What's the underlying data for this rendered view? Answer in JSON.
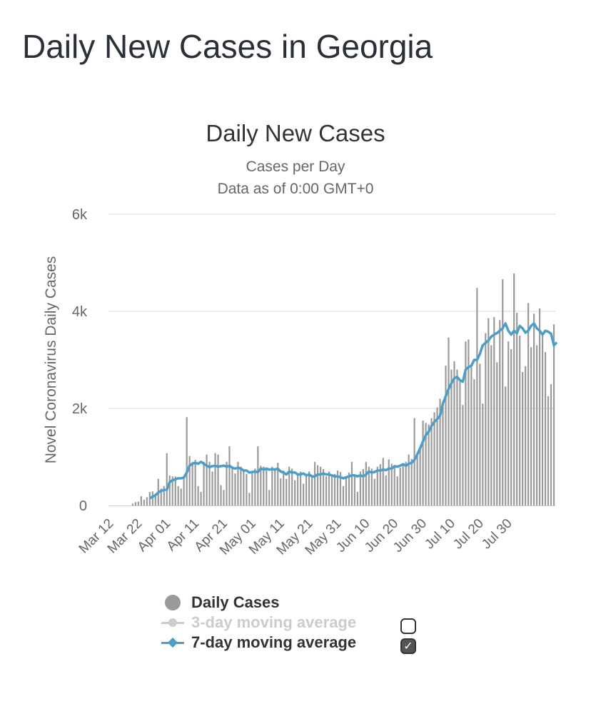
{
  "page": {
    "title": "Daily New Cases in Georgia"
  },
  "chart_title": "Daily New Cases",
  "chart_subtitle_1": "Cases per Day",
  "chart_subtitle_2": "Data as of 0:00 GMT+0",
  "colors": {
    "bars": "#9a9a9a",
    "ma7": "#4d9dc9",
    "ma3_disabled": "#cccccc",
    "grid": "#e6e6e6"
  },
  "legend": {
    "daily": {
      "label": "Daily Cases",
      "enabled": true
    },
    "ma3": {
      "label": "3-day moving average",
      "enabled": false
    },
    "ma7": {
      "label": "7-day moving average",
      "enabled": true
    }
  },
  "chart_data": {
    "type": "bar",
    "ylabel": "Novel Coronavirus Daily Cases",
    "ylim": [
      0,
      6000
    ],
    "y_ticks": [
      "0",
      "2k",
      "4k",
      "6k"
    ],
    "grid": true,
    "start_date": "2020-03-12",
    "x_tick_labels": [
      "Mar 12",
      "Mar 22",
      "Apr 01",
      "Apr 11",
      "Apr 21",
      "May 01",
      "May 11",
      "May 21",
      "May 31",
      "Jun 10",
      "Jun 20",
      "Jun 30",
      "Jul 10",
      "Jul 20",
      "Jul 30"
    ],
    "series": [
      {
        "name": "Daily Cases",
        "type": "bar",
        "values": [
          0,
          0,
          0,
          0,
          0,
          0,
          0,
          0,
          40,
          70,
          80,
          190,
          120,
          170,
          280,
          290,
          250,
          550,
          350,
          400,
          1080,
          620,
          600,
          600,
          400,
          350,
          560,
          1820,
          1020,
          900,
          940,
          400,
          280,
          900,
          1050,
          900,
          700,
          1080,
          1050,
          420,
          320,
          900,
          1220,
          800,
          660,
          900,
          800,
          700,
          650,
          260,
          700,
          760,
          1220,
          820,
          800,
          750,
          320,
          800,
          750,
          880,
          560,
          720,
          550,
          800,
          760,
          520,
          660,
          700,
          450,
          650,
          700,
          600,
          900,
          830,
          800,
          750,
          600,
          700,
          600,
          650,
          720,
          690,
          400,
          590,
          680,
          900,
          620,
          280,
          700,
          750,
          900,
          800,
          760,
          550,
          800,
          850,
          980,
          620,
          950,
          860,
          780,
          600,
          780,
          850,
          900,
          1050,
          960,
          1800,
          1100,
          1200,
          1750,
          1700,
          1670,
          1800,
          1920,
          2020,
          2200,
          2070,
          2880,
          3460,
          2800,
          2970,
          2800,
          2550,
          2070,
          3380,
          3420,
          2850,
          2600,
          4480,
          2920,
          2100,
          3550,
          3860,
          3300,
          3880,
          2950,
          3820,
          4660,
          2450,
          3380,
          3220,
          4780,
          3970,
          3500,
          2750,
          2870,
          4170,
          3260,
          3950,
          3300,
          4060,
          3550,
          3160,
          2250,
          2500,
          3730
        ]
      },
      {
        "name": "7-day moving average",
        "type": "line",
        "values": [
          null,
          null,
          null,
          null,
          null,
          null,
          null,
          null,
          null,
          null,
          null,
          null,
          null,
          null,
          150,
          180,
          210,
          270,
          300,
          320,
          330,
          480,
          520,
          540,
          560,
          560,
          580,
          680,
          820,
          860,
          880,
          860,
          900,
          860,
          820,
          790,
          810,
          820,
          800,
          810,
          820,
          800,
          820,
          780,
          760,
          780,
          760,
          720,
          720,
          680,
          690,
          700,
          690,
          760,
          740,
          760,
          740,
          750,
          740,
          760,
          700,
          680,
          640,
          700,
          680,
          680,
          640,
          640,
          660,
          620,
          640,
          600,
          600,
          640,
          640,
          660,
          640,
          640,
          620,
          600,
          600,
          580,
          560,
          580,
          600,
          620,
          620,
          600,
          620,
          600,
          640,
          700,
          680,
          690,
          720,
          720,
          740,
          730,
          760,
          760,
          810,
          800,
          820,
          850,
          820,
          860,
          880,
          940,
          1050,
          1180,
          1320,
          1450,
          1520,
          1640,
          1720,
          1780,
          1850,
          2100,
          2250,
          2400,
          2520,
          2620,
          2650,
          2580,
          2550,
          2800,
          2850,
          2880,
          3000,
          3000,
          3120,
          3300,
          3350,
          3400,
          3480,
          3520,
          3550,
          3600,
          3650,
          3750,
          3600,
          3520,
          3600,
          3550,
          3700,
          3650,
          3560,
          3600,
          3700,
          3750,
          3650,
          3600,
          3520,
          3600,
          3580,
          3540,
          3300,
          3360
        ]
      }
    ]
  }
}
